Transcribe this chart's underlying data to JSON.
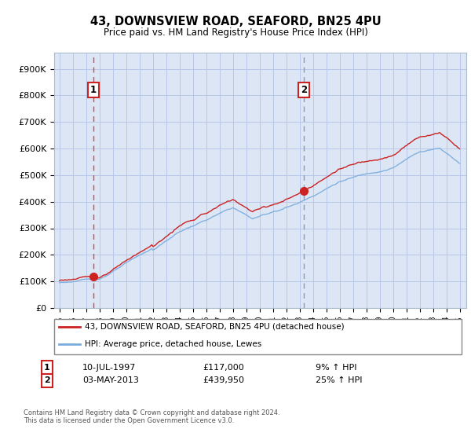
{
  "title": "43, DOWNSVIEW ROAD, SEAFORD, BN25 4PU",
  "subtitle": "Price paid vs. HM Land Registry's House Price Index (HPI)",
  "ylabel_ticks": [
    "£0",
    "£100K",
    "£200K",
    "£300K",
    "£400K",
    "£500K",
    "£600K",
    "£700K",
    "£800K",
    "£900K"
  ],
  "ytick_vals": [
    0,
    100000,
    200000,
    300000,
    400000,
    500000,
    600000,
    700000,
    800000,
    900000
  ],
  "ylim": [
    0,
    960000
  ],
  "xlim_start": 1994.6,
  "xlim_end": 2025.5,
  "bg_color": "#dce6f5",
  "plot_bg_color": "#dce6f5",
  "grid_color": "#b8c8e8",
  "sale1_year": 1997.53,
  "sale1_price": 117000,
  "sale2_year": 2013.34,
  "sale2_price": 439950,
  "legend_line1": "43, DOWNSVIEW ROAD, SEAFORD, BN25 4PU (detached house)",
  "legend_line2": "HPI: Average price, detached house, Lewes",
  "footer": "Contains HM Land Registry data © Crown copyright and database right 2024.\nThis data is licensed under the Open Government Licence v3.0.",
  "line_red": "#cc2222",
  "line_blue": "#7aacdc",
  "dash1_color": "#dd4444",
  "dash2_color": "#8899bb",
  "dot_color": "#cc2222",
  "sale1_date": "10-JUL-1997",
  "sale1_str": "£117,000",
  "sale1_hpi": "9% ↑ HPI",
  "sale2_date": "03-MAY-2013",
  "sale2_str": "£439,950",
  "sale2_hpi": "25% ↑ HPI"
}
